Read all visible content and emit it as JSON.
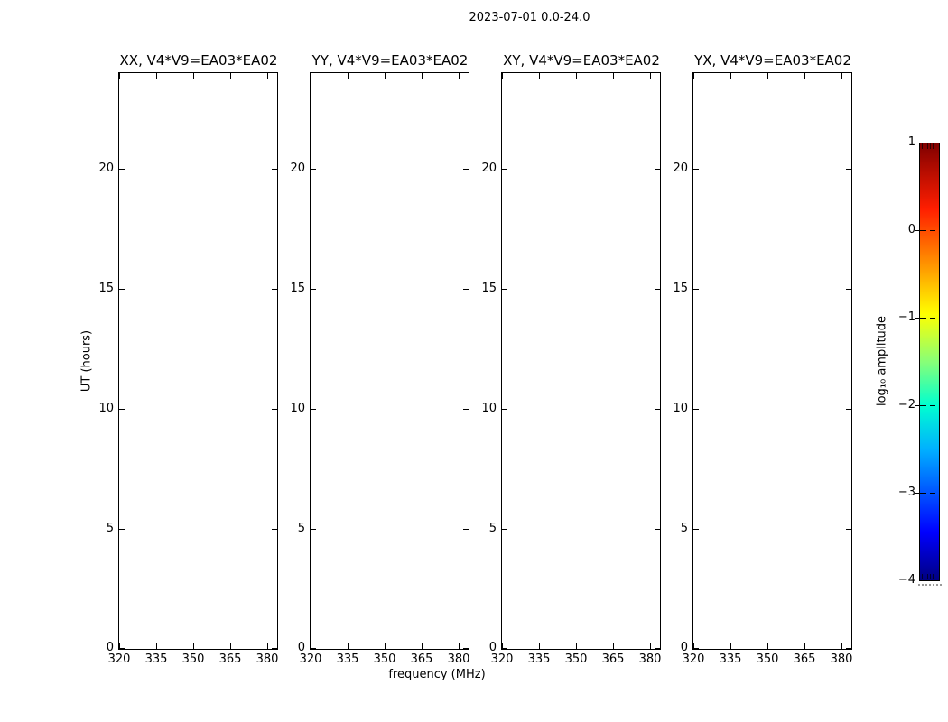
{
  "chart_data": {
    "type": "heatmap",
    "title": "2023-07-01 0.0-24.0",
    "panels": [
      {
        "id": "xx",
        "title": "XX, V4*V9=EA03*EA02",
        "values": []
      },
      {
        "id": "yy",
        "title": "YY, V4*V9=EA03*EA02",
        "values": []
      },
      {
        "id": "xy",
        "title": "XY, V4*V9=EA03*EA02",
        "values": []
      },
      {
        "id": "yx",
        "title": "YX, V4*V9=EA03*EA02",
        "values": []
      }
    ],
    "note": "all four panels are empty (no data rendered inside axes)",
    "x_axis": {
      "label": "frequency (MHz)",
      "ticks": [
        320,
        335,
        350,
        365,
        380
      ],
      "range": [
        320,
        384
      ]
    },
    "y_axis": {
      "label": "UT (hours)",
      "ticks": [
        0,
        5,
        10,
        15,
        20
      ],
      "range": [
        0,
        24
      ]
    },
    "grid": false,
    "colorbar": {
      "label": "log₁₀ amplitude",
      "ticks": [
        1,
        0,
        -1,
        -2,
        -3,
        -4
      ],
      "range": [
        -4,
        1
      ],
      "colormap": "jet",
      "colormap_stops": [
        {
          "pos": 0.0,
          "color": "#000080"
        },
        {
          "pos": 0.11,
          "color": "#0000ff"
        },
        {
          "pos": 0.3,
          "color": "#00b0ff"
        },
        {
          "pos": 0.4,
          "color": "#00ffd0"
        },
        {
          "pos": 0.5,
          "color": "#87ff78"
        },
        {
          "pos": 0.61,
          "color": "#ffff00"
        },
        {
          "pos": 0.71,
          "color": "#ffa000"
        },
        {
          "pos": 0.85,
          "color": "#ff1e00"
        },
        {
          "pos": 1.0,
          "color": "#800000"
        }
      ]
    },
    "axis_color": "#000000",
    "background": "#ffffff"
  }
}
